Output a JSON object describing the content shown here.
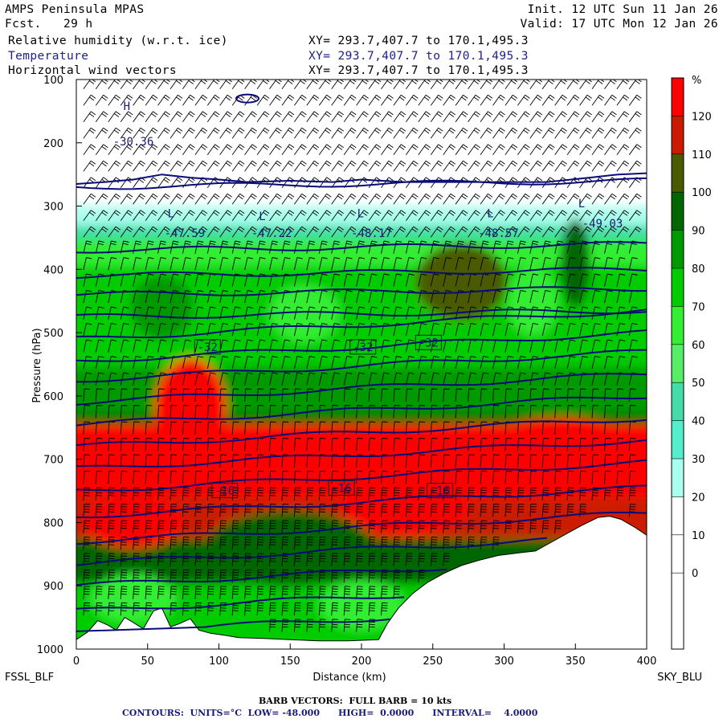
{
  "header": {
    "model": "AMPS Peninsula MPAS",
    "fcst": "Fcst.   29 h",
    "init": "Init. 12 UTC Sun 11 Jan 26",
    "valid": "Valid: 17 UTC Mon 12 Jan 26",
    "field1": "Relative humidity (w.r.t. ice)",
    "field2": "Temperature",
    "field3": "Horizontal wind vectors",
    "xy1": "XY= 293.7,407.7 to 170.1,495.3",
    "xy2": "XY= 293.7,407.7 to 170.1,495.3",
    "xy3": "XY= 293.7,407.7 to 170.1,495.3"
  },
  "footer": {
    "left_station": "FSSL_BLF",
    "right_station": "SKY_BLU",
    "barb_note": "BARB VECTORS:  FULL BARB = 10 kts",
    "contour_note": "CONTOURS:  UNITS=°C  LOW= -48.000      HIGH=  0.0000      INTERVAL=    4.0000"
  },
  "colors": {
    "contour_line": "#0a0a78",
    "terrain": "#ffffff"
  },
  "chart_data": {
    "type": "heatmap",
    "title": "Relative humidity (w.r.t. ice)",
    "xlabel": "Distance (km)",
    "ylabel": "Pressure (hPa)",
    "xlim": [
      0,
      400
    ],
    "ylim": [
      1000,
      100
    ],
    "x_ticks": [
      "0",
      "50",
      "100",
      "150",
      "200",
      "250",
      "300",
      "350",
      "400"
    ],
    "y_ticks": [
      "100",
      "200",
      "300",
      "400",
      "500",
      "600",
      "700",
      "800",
      "900",
      "1000"
    ],
    "colorbar": {
      "unit": "%",
      "labels": [
        "120",
        "110",
        "100",
        "90",
        "80",
        "70",
        "60",
        "50",
        "40",
        "30",
        "20",
        "10",
        "0"
      ],
      "colors": [
        "#ff0000",
        "#cc1a00",
        "#4a5a00",
        "#006600",
        "#009900",
        "#00cc00",
        "#33ee33",
        "#55ee66",
        "#44ddaa",
        "#55eecc",
        "#aaffee",
        "#ffffff",
        "#ffffff",
        "#ffffff",
        "#ffffff"
      ]
    },
    "temperature_labels": [
      {
        "text": "-30.36",
        "x": 40,
        "p": 200
      },
      {
        "text": "-47.59",
        "x": 76,
        "p": 345
      },
      {
        "text": "-47.22",
        "x": 137,
        "p": 345
      },
      {
        "text": "-48.17",
        "x": 207,
        "p": 345
      },
      {
        "text": "-48.57",
        "x": 296,
        "p": 345
      },
      {
        "text": "-49.03",
        "x": 369,
        "p": 330
      },
      {
        "text": "-32",
        "x": 92,
        "p": 525
      },
      {
        "text": "-32",
        "x": 201,
        "p": 525
      },
      {
        "text": "-32",
        "x": 247,
        "p": 518
      },
      {
        "text": "-16",
        "x": 104,
        "p": 752
      },
      {
        "text": "-16",
        "x": 186,
        "p": 748
      },
      {
        "text": "-16",
        "x": 255,
        "p": 752
      }
    ],
    "low_markers": [
      {
        "text": "L",
        "x": 64,
        "p": 318
      },
      {
        "text": "L",
        "x": 128,
        "p": 322
      },
      {
        "text": "L",
        "x": 197,
        "p": 318
      },
      {
        "text": "L",
        "x": 288,
        "p": 318
      },
      {
        "text": "L",
        "x": 352,
        "p": 302
      }
    ],
    "high_markers": [
      {
        "text": "H",
        "x": 33,
        "p": 148
      }
    ],
    "terrain_profile": [
      [
        0,
        985
      ],
      [
        8,
        973
      ],
      [
        15,
        955
      ],
      [
        22,
        962
      ],
      [
        28,
        970
      ],
      [
        34,
        950
      ],
      [
        40,
        958
      ],
      [
        47,
        968
      ],
      [
        54,
        940
      ],
      [
        60,
        935
      ],
      [
        66,
        965
      ],
      [
        72,
        960
      ],
      [
        80,
        952
      ],
      [
        86,
        970
      ],
      [
        94,
        975
      ],
      [
        104,
        978
      ],
      [
        114,
        982
      ],
      [
        130,
        983
      ],
      [
        150,
        985
      ],
      [
        170,
        987
      ],
      [
        190,
        987
      ],
      [
        212,
        985
      ],
      [
        218,
        960
      ],
      [
        226,
        935
      ],
      [
        236,
        912
      ],
      [
        246,
        895
      ],
      [
        258,
        880
      ],
      [
        270,
        868
      ],
      [
        282,
        860
      ],
      [
        296,
        852
      ],
      [
        310,
        848
      ],
      [
        322,
        845
      ],
      [
        330,
        835
      ],
      [
        342,
        820
      ],
      [
        354,
        805
      ],
      [
        366,
        792
      ],
      [
        374,
        790
      ],
      [
        382,
        795
      ],
      [
        392,
        808
      ],
      [
        400,
        820
      ]
    ]
  }
}
